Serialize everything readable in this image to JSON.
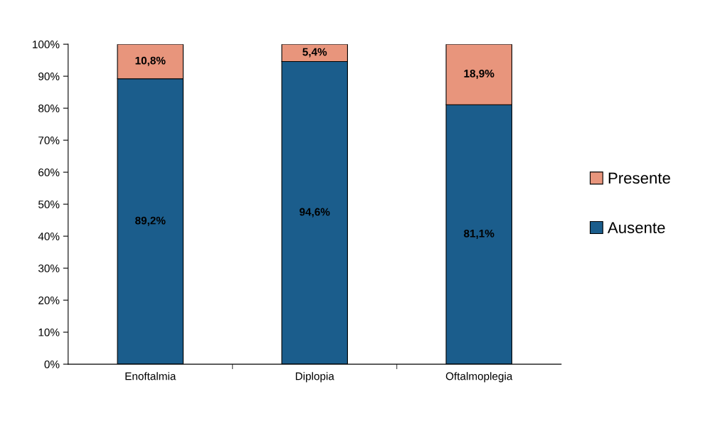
{
  "chart_data": {
    "type": "bar",
    "stacked": true,
    "categories": [
      "Enoftalmia",
      "Diplopia",
      "Oftalmoplegia"
    ],
    "series": [
      {
        "name": "Ausente",
        "color": "#1b5d8c",
        "values": [
          89.2,
          94.6,
          81.1
        ],
        "value_labels": [
          "89,2%",
          "94,6%",
          "81,1%"
        ]
      },
      {
        "name": "Presente",
        "color": "#e8957c",
        "values": [
          10.8,
          5.4,
          18.9
        ],
        "value_labels": [
          "10,8%",
          "5,4%",
          "18,9%"
        ]
      }
    ],
    "ylim": [
      0,
      100
    ],
    "yticks": [
      {
        "value": 0,
        "label": "0%"
      },
      {
        "value": 10,
        "label": "10%"
      },
      {
        "value": 20,
        "label": "20%"
      },
      {
        "value": 30,
        "label": "30%"
      },
      {
        "value": 40,
        "label": "40%"
      },
      {
        "value": 50,
        "label": "50%"
      },
      {
        "value": 60,
        "label": "60%"
      },
      {
        "value": 70,
        "label": "70%"
      },
      {
        "value": 80,
        "label": "80%"
      },
      {
        "value": 90,
        "label": "90%"
      },
      {
        "value": 100,
        "label": "100%"
      }
    ],
    "grid": false,
    "legend": "right"
  }
}
